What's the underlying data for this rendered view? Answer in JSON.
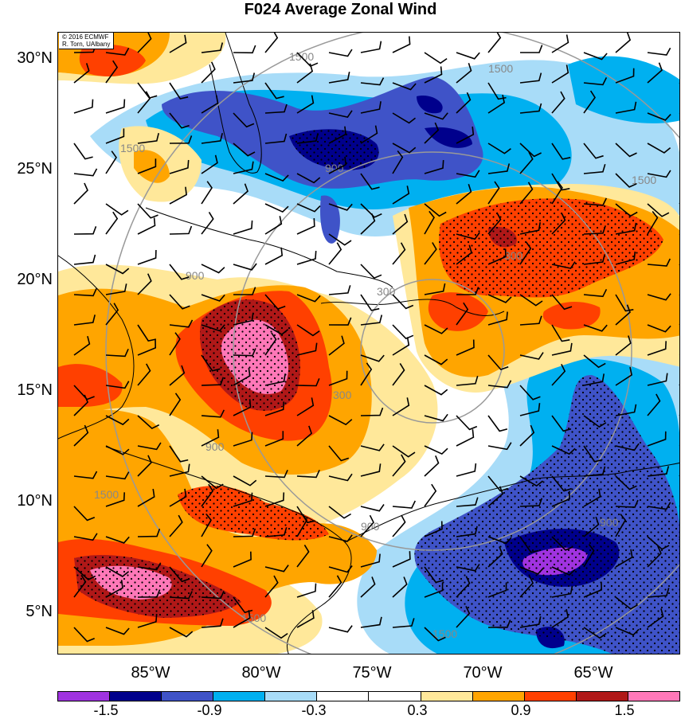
{
  "title": "F024 Average Zonal Wind",
  "credit": {
    "line1": "© 2016 ECMWF",
    "line2": "R. Torn, UAlbany"
  },
  "lat_labels": [
    "30°N",
    "25°N",
    "20°N",
    "15°N",
    "10°N",
    "5°N"
  ],
  "lon_labels": [
    "85°W",
    "80°W",
    "75°W",
    "70°W",
    "65°W"
  ],
  "range_rings": [
    "1500",
    "1500",
    "1500",
    "1500",
    "900",
    "900",
    "900",
    "900",
    "300",
    "300",
    "300",
    "1500",
    "1500",
    "1500",
    "900"
  ],
  "colorbar": {
    "colors": [
      "#a033e0",
      "#00008c",
      "#3f53c8",
      "#00b0f0",
      "#a8dcf8",
      "#ffffff",
      "#ffffff",
      "#ffe89a",
      "#ffa500",
      "#ff4000",
      "#b01818",
      "#ff78b8"
    ],
    "tick_labels": [
      "-1.5",
      "-0.9",
      "-0.3",
      "0.3",
      "0.9",
      "1.5"
    ]
  },
  "map_colors": {
    "deep_purple": "#a033e0",
    "dark_blue": "#00008c",
    "blue": "#3f53c8",
    "cyan": "#00b0f0",
    "light_blue": "#a8dcf8",
    "yellow": "#ffe89a",
    "orange": "#ffa500",
    "red_orange": "#ff4000",
    "dark_red": "#b01818",
    "pink": "#ff78b8",
    "range_ring": "#999999",
    "coastline": "#000000"
  }
}
